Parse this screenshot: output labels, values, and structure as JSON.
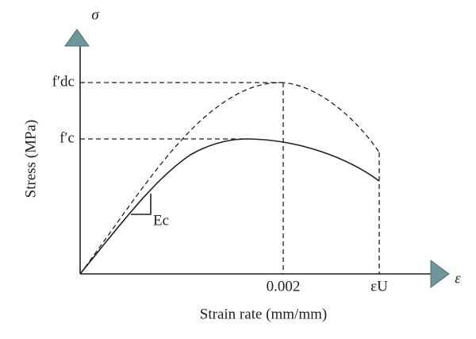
{
  "axis": {
    "y_symbol": "σ",
    "x_symbol": "ε",
    "y_label": "Stress (MPa)",
    "x_label": "Strain rate (mm/mm)"
  },
  "labels": {
    "fdc": "f′dc",
    "fc": "f′c",
    "ec": "Ec",
    "strain_peak": "0.002",
    "strain_ultimate": "εU"
  }
}
